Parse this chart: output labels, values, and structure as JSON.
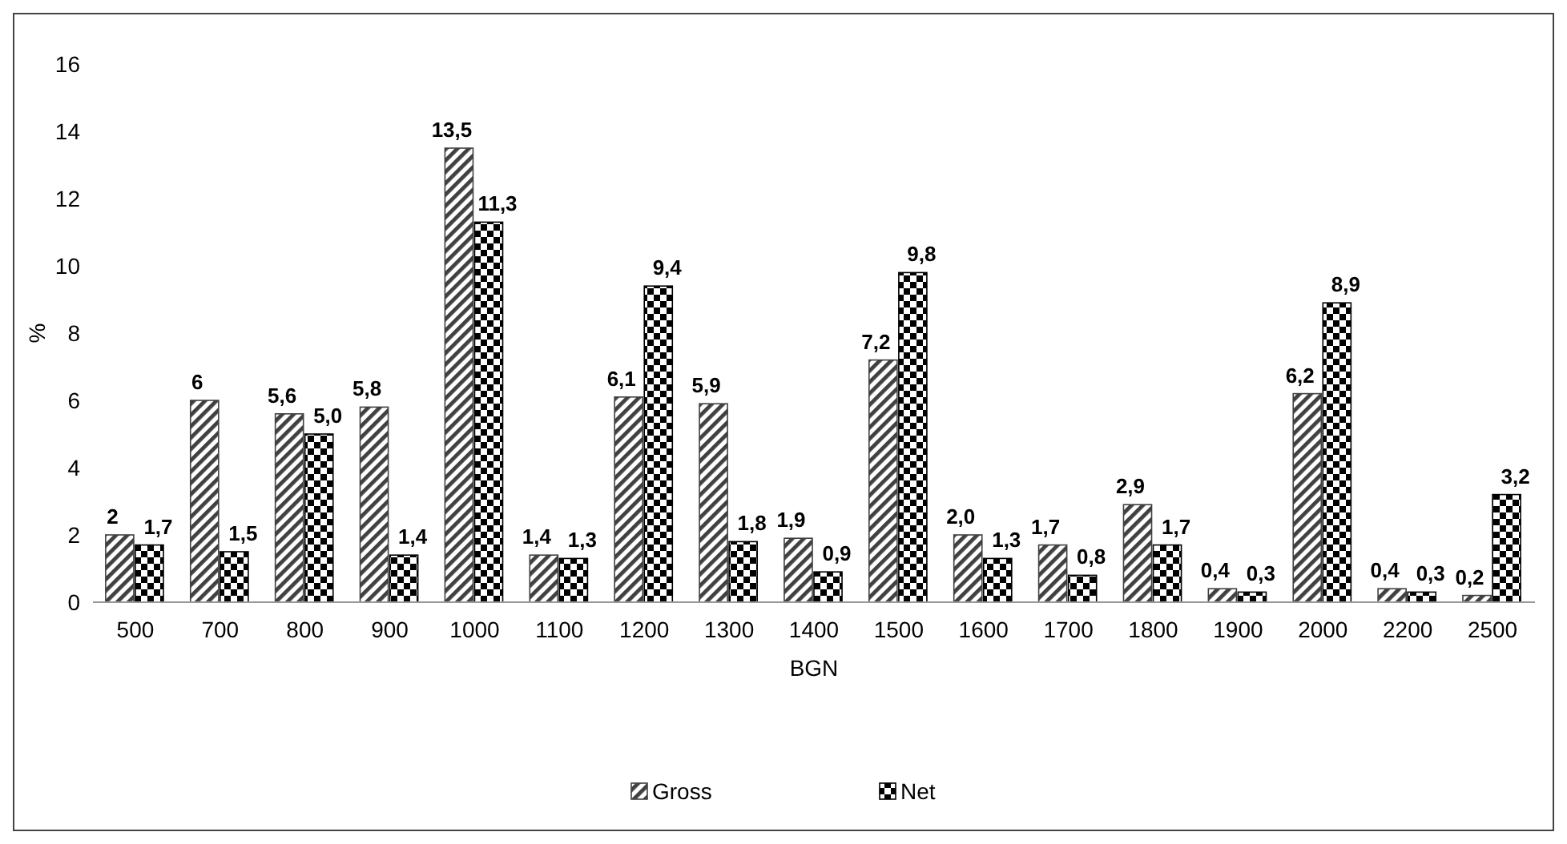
{
  "chart_data": {
    "type": "bar",
    "xlabel": "BGN",
    "ylabel": "%",
    "categories": [
      "500",
      "700",
      "800",
      "900",
      "1000",
      "1100",
      "1200",
      "1300",
      "1400",
      "1500",
      "1600",
      "1700",
      "1800",
      "1900",
      "2000",
      "2200",
      "2500"
    ],
    "series": [
      {
        "name": "Gross",
        "color": "#404040",
        "values": [
          2,
          6,
          5.6,
          5.8,
          13.5,
          1.4,
          6.1,
          5.9,
          1.9,
          7.2,
          2.0,
          1.7,
          2.9,
          0.4,
          6.2,
          0.4,
          0.2
        ],
        "value_labels": [
          "2",
          "6",
          "5,6",
          "5,8",
          "13,5",
          "1,4",
          "6,1",
          "5,9",
          "1,9",
          "7,2",
          "2,0",
          "1,7",
          "2,9",
          "0,4",
          "6,2",
          "0,4",
          "0,2"
        ]
      },
      {
        "name": "Net",
        "color": "#000000",
        "values": [
          1.7,
          1.5,
          5.0,
          1.4,
          11.3,
          1.3,
          9.4,
          1.8,
          0.9,
          9.8,
          1.3,
          0.8,
          1.7,
          0.3,
          8.9,
          0.3,
          3.2
        ],
        "value_labels": [
          "1,7",
          "1,5",
          "5,0",
          "1,4",
          "11,3",
          "1,3",
          "9,4",
          "1,8",
          "0,9",
          "9,8",
          "1,3",
          "0,8",
          "1,7",
          "0,3",
          "8,9",
          "0,3",
          "3,2"
        ]
      }
    ],
    "ylim": [
      0,
      16
    ],
    "yticks": [
      0,
      2,
      4,
      6,
      8,
      10,
      12,
      14,
      16
    ],
    "grid": false,
    "legend": "bottom"
  }
}
